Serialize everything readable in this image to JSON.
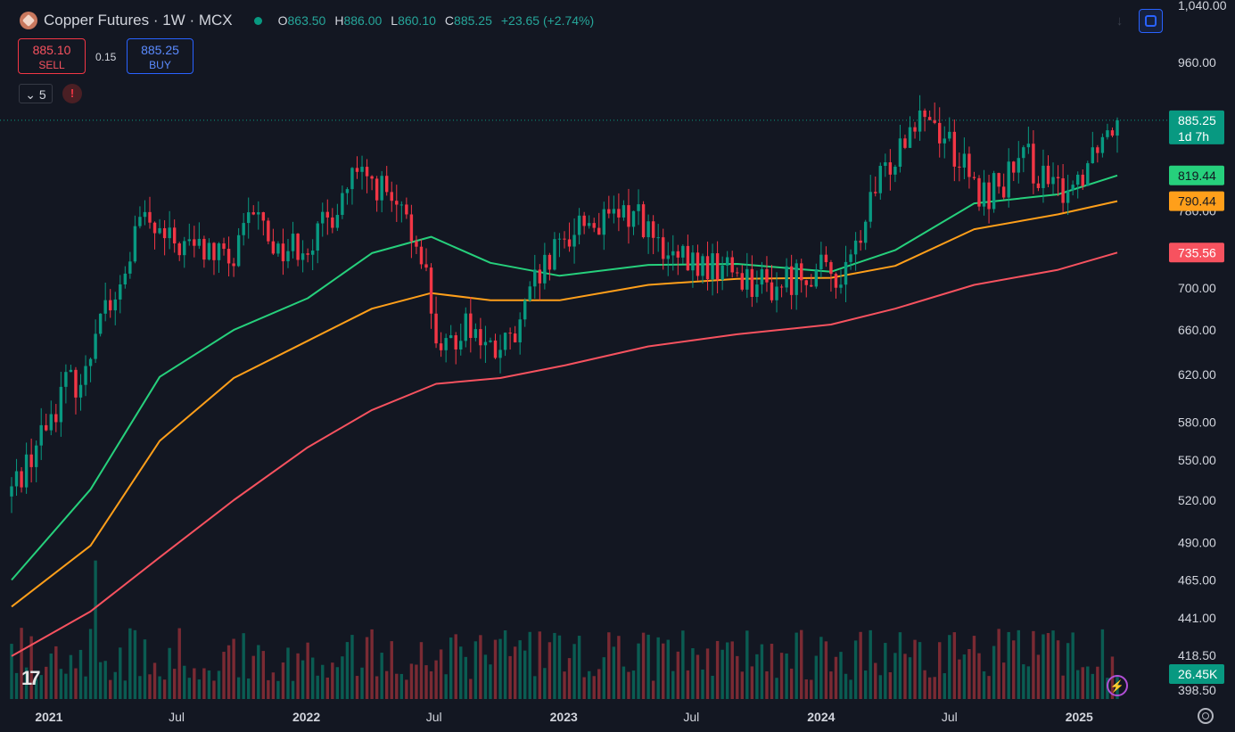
{
  "header": {
    "title": "Copper Futures · 1W · MCX",
    "ohlc": [
      {
        "k": "O",
        "v": "863.50"
      },
      {
        "k": "H",
        "v": "886.00"
      },
      {
        "k": "L",
        "v": "860.10"
      },
      {
        "k": "C",
        "v": "885.25"
      },
      {
        "k": "",
        "v": "+23.65 (+2.74%)"
      }
    ]
  },
  "trade": {
    "sell_price": "885.10",
    "sell_label": "SELL",
    "buy_price": "885.25",
    "buy_label": "BUY",
    "spread": "0.15"
  },
  "indicators_toggle": {
    "chevron": "chevron-down-icon",
    "count": "5"
  },
  "warning_label": "!",
  "bolt_label": "⚡",
  "colors": {
    "up": "#089981",
    "down": "#f23645",
    "ema_fast": "#26d07c",
    "ema_mid": "#ff9f1a",
    "ema_slow": "#f7525f",
    "background": "#131722"
  },
  "chart_data": {
    "type": "candlestick",
    "interval": "1W",
    "yaxis": {
      "ticks": [
        {
          "label": "1,040.00",
          "value": 1040
        },
        {
          "label": "960.00",
          "value": 960
        },
        {
          "label": "820.00",
          "value": 820
        },
        {
          "label": "780.00",
          "value": 780
        },
        {
          "label": "740.00",
          "value": 740
        },
        {
          "label": "700.00",
          "value": 700
        },
        {
          "label": "660.00",
          "value": 660
        },
        {
          "label": "620.00",
          "value": 620
        },
        {
          "label": "580.00",
          "value": 580
        },
        {
          "label": "550.00",
          "value": 550
        },
        {
          "label": "520.00",
          "value": 520
        },
        {
          "label": "490.00",
          "value": 490
        },
        {
          "label": "465.00",
          "value": 465
        },
        {
          "label": "441.00",
          "value": 441
        },
        {
          "label": "418.50",
          "value": 418.5
        },
        {
          "label": "398.50",
          "value": 398.5
        }
      ],
      "scale": "log"
    },
    "xaxis": {
      "ticks": [
        {
          "label": "2021",
          "date": "2021-01-01",
          "bold": true
        },
        {
          "label": "Jul",
          "date": "2021-07-01",
          "bold": false
        },
        {
          "label": "2022",
          "date": "2022-01-01",
          "bold": true
        },
        {
          "label": "Jul",
          "date": "2022-07-01",
          "bold": false
        },
        {
          "label": "2023",
          "date": "2023-01-01",
          "bold": true
        },
        {
          "label": "Jul",
          "date": "2023-07-01",
          "bold": false
        },
        {
          "label": "2024",
          "date": "2024-01-01",
          "bold": true
        },
        {
          "label": "Jul",
          "date": "2024-07-01",
          "bold": false
        },
        {
          "label": "2025",
          "date": "2025-01-01",
          "bold": true
        }
      ]
    },
    "price_anchors": [
      {
        "date": "2020-11-09",
        "price": 528
      },
      {
        "date": "2020-12-21",
        "price": 570
      },
      {
        "date": "2021-01-25",
        "price": 612
      },
      {
        "date": "2021-02-22",
        "price": 618
      },
      {
        "date": "2021-03-15",
        "price": 690
      },
      {
        "date": "2021-04-05",
        "price": 680
      },
      {
        "date": "2021-05-10",
        "price": 770
      },
      {
        "date": "2021-06-21",
        "price": 745
      },
      {
        "date": "2021-08-02",
        "price": 740
      },
      {
        "date": "2021-09-20",
        "price": 725
      },
      {
        "date": "2021-10-18",
        "price": 780
      },
      {
        "date": "2021-11-22",
        "price": 738
      },
      {
        "date": "2022-01-17",
        "price": 752
      },
      {
        "date": "2022-03-07",
        "price": 815
      },
      {
        "date": "2022-04-11",
        "price": 810
      },
      {
        "date": "2022-05-16",
        "price": 770
      },
      {
        "date": "2022-06-13",
        "price": 740
      },
      {
        "date": "2022-07-11",
        "price": 630
      },
      {
        "date": "2022-08-15",
        "price": 672
      },
      {
        "date": "2022-09-19",
        "price": 638
      },
      {
        "date": "2022-10-24",
        "price": 650
      },
      {
        "date": "2022-11-21",
        "price": 702
      },
      {
        "date": "2023-01-23",
        "price": 770
      },
      {
        "date": "2023-02-27",
        "price": 765
      },
      {
        "date": "2023-04-17",
        "price": 780
      },
      {
        "date": "2023-05-22",
        "price": 728
      },
      {
        "date": "2023-07-10",
        "price": 722
      },
      {
        "date": "2023-08-21",
        "price": 720
      },
      {
        "date": "2023-10-23",
        "price": 700
      },
      {
        "date": "2023-12-11",
        "price": 718
      },
      {
        "date": "2024-02-05",
        "price": 712
      },
      {
        "date": "2024-03-18",
        "price": 800
      },
      {
        "date": "2024-04-22",
        "price": 860
      },
      {
        "date": "2024-05-20",
        "price": 905
      },
      {
        "date": "2024-07-01",
        "price": 860
      },
      {
        "date": "2024-08-12",
        "price": 793
      },
      {
        "date": "2024-09-23",
        "price": 818
      },
      {
        "date": "2024-10-21",
        "price": 838
      },
      {
        "date": "2024-11-25",
        "price": 800
      },
      {
        "date": "2024-12-30",
        "price": 815
      },
      {
        "date": "2025-01-27",
        "price": 862
      },
      {
        "date": "2025-02-24",
        "price": 885.25
      }
    ],
    "moving_averages": [
      {
        "label": "819.44",
        "color": "#26d07c",
        "points": [
          {
            "date": "2020-11-09",
            "value": 465
          },
          {
            "date": "2021-03-01",
            "value": 528
          },
          {
            "date": "2021-06-07",
            "value": 618
          },
          {
            "date": "2021-09-20",
            "value": 660
          },
          {
            "date": "2022-01-03",
            "value": 690
          },
          {
            "date": "2022-04-04",
            "value": 735
          },
          {
            "date": "2022-06-27",
            "value": 752
          },
          {
            "date": "2022-09-19",
            "value": 725
          },
          {
            "date": "2022-12-26",
            "value": 712
          },
          {
            "date": "2023-05-01",
            "value": 723
          },
          {
            "date": "2023-09-04",
            "value": 724
          },
          {
            "date": "2024-01-15",
            "value": 716
          },
          {
            "date": "2024-04-15",
            "value": 738
          },
          {
            "date": "2024-08-05",
            "value": 788
          },
          {
            "date": "2024-12-02",
            "value": 798
          },
          {
            "date": "2025-02-24",
            "value": 819.44
          }
        ]
      },
      {
        "label": "790.44",
        "color": "#ff9f1a",
        "points": [
          {
            "date": "2020-11-09",
            "value": 448
          },
          {
            "date": "2021-03-01",
            "value": 488
          },
          {
            "date": "2021-06-07",
            "value": 565
          },
          {
            "date": "2021-09-20",
            "value": 617
          },
          {
            "date": "2022-01-03",
            "value": 650
          },
          {
            "date": "2022-04-04",
            "value": 680
          },
          {
            "date": "2022-06-27",
            "value": 695
          },
          {
            "date": "2022-09-19",
            "value": 688
          },
          {
            "date": "2022-12-26",
            "value": 688
          },
          {
            "date": "2023-05-01",
            "value": 703
          },
          {
            "date": "2023-09-04",
            "value": 709
          },
          {
            "date": "2024-01-15",
            "value": 710
          },
          {
            "date": "2024-04-15",
            "value": 722
          },
          {
            "date": "2024-08-05",
            "value": 760
          },
          {
            "date": "2024-12-02",
            "value": 776
          },
          {
            "date": "2025-02-24",
            "value": 790.44
          }
        ]
      },
      {
        "label": "735.56",
        "color": "#f7525f",
        "points": [
          {
            "date": "2020-11-09",
            "value": 418
          },
          {
            "date": "2021-03-01",
            "value": 445
          },
          {
            "date": "2021-06-07",
            "value": 480
          },
          {
            "date": "2021-09-20",
            "value": 520
          },
          {
            "date": "2022-01-03",
            "value": 560
          },
          {
            "date": "2022-04-04",
            "value": 590
          },
          {
            "date": "2022-07-04",
            "value": 612
          },
          {
            "date": "2022-10-03",
            "value": 617
          },
          {
            "date": "2023-01-02",
            "value": 628
          },
          {
            "date": "2023-05-01",
            "value": 645
          },
          {
            "date": "2023-09-04",
            "value": 656
          },
          {
            "date": "2024-01-15",
            "value": 665
          },
          {
            "date": "2024-04-15",
            "value": 680
          },
          {
            "date": "2024-08-05",
            "value": 703
          },
          {
            "date": "2024-12-02",
            "value": 718
          },
          {
            "date": "2025-02-24",
            "value": 735.56
          }
        ]
      }
    ],
    "price_tag": {
      "value": 885.25,
      "label": "885.25",
      "countdown": "1d 7h"
    },
    "volume_tag": "26.45K"
  }
}
